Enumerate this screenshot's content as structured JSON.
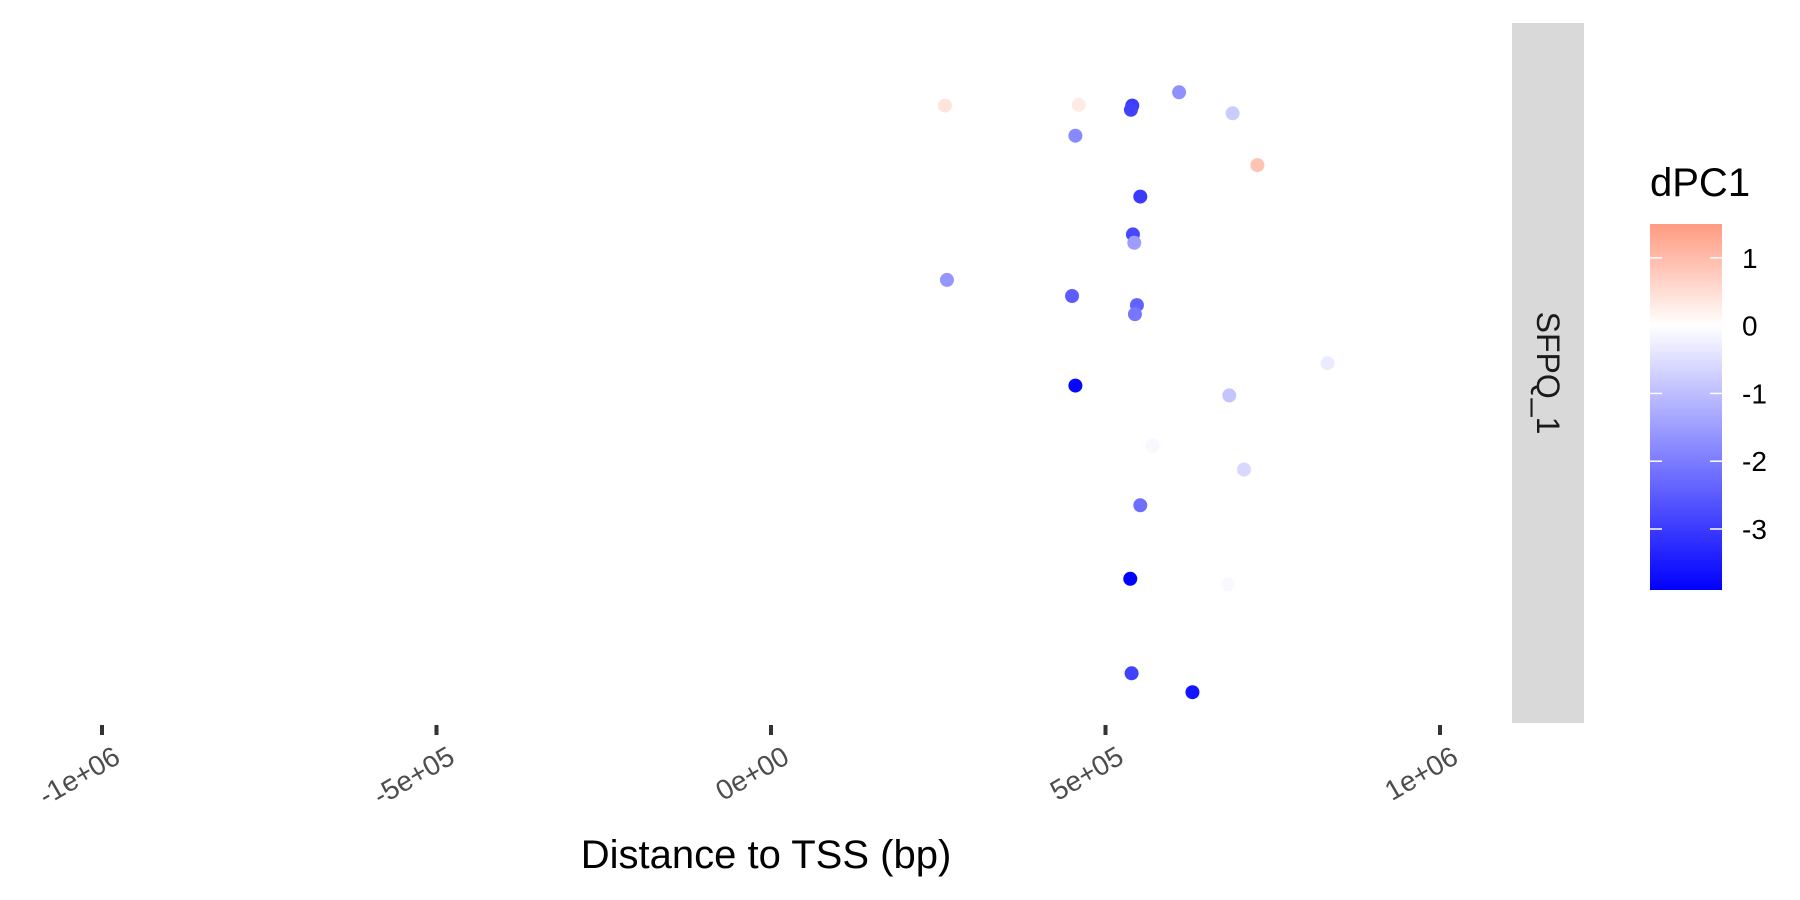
{
  "chart_data": {
    "type": "scatter",
    "xlabel": "Distance to TSS (bp)",
    "ylabel": "",
    "xlim": [
      -1000000,
      1000000
    ],
    "x_ticks": [
      -1000000,
      -500000,
      0,
      500000,
      1000000
    ],
    "x_tick_labels": [
      "-1e+06",
      "-5e+05",
      "0e+00",
      "5e+05",
      "1e+06"
    ],
    "facet_label": "SFPQ_1",
    "grid": false,
    "legend": {
      "title": "dPC1",
      "position": "right",
      "type": "colorbar",
      "range": [
        -3.9,
        1.5
      ],
      "ticks": [
        1,
        0,
        -1,
        -2,
        -3
      ],
      "tick_labels": [
        "1",
        "0",
        "-1",
        "-2",
        "-3"
      ],
      "low_color": "#0000FF",
      "mid_color": "#FFFFFF",
      "high_color": "#FF9A80"
    },
    "points": [
      {
        "x": 260000,
        "y": 0.882,
        "dPC1": 0.4
      },
      {
        "x": 460000,
        "y": 0.883,
        "dPC1": 0.3
      },
      {
        "x": 540000,
        "y": 0.882,
        "dPC1": -3.0
      },
      {
        "x": 538000,
        "y": 0.876,
        "dPC1": -2.9
      },
      {
        "x": 610000,
        "y": 0.901,
        "dPC1": -1.7
      },
      {
        "x": 690000,
        "y": 0.871,
        "dPC1": -0.8
      },
      {
        "x": 455000,
        "y": 0.839,
        "dPC1": -1.8
      },
      {
        "x": 727000,
        "y": 0.797,
        "dPC1": 0.9
      },
      {
        "x": 552000,
        "y": 0.752,
        "dPC1": -3.0
      },
      {
        "x": 541000,
        "y": 0.698,
        "dPC1": -2.8
      },
      {
        "x": 543000,
        "y": 0.686,
        "dPC1": -1.5
      },
      {
        "x": 263000,
        "y": 0.633,
        "dPC1": -1.6
      },
      {
        "x": 450000,
        "y": 0.61,
        "dPC1": -2.5
      },
      {
        "x": 547000,
        "y": 0.597,
        "dPC1": -2.4
      },
      {
        "x": 544000,
        "y": 0.584,
        "dPC1": -2.1
      },
      {
        "x": 832000,
        "y": 0.514,
        "dPC1": -0.3
      },
      {
        "x": 455000,
        "y": 0.482,
        "dPC1": -3.8
      },
      {
        "x": 685000,
        "y": 0.468,
        "dPC1": -0.9
      },
      {
        "x": 570000,
        "y": 0.396,
        "dPC1": -0.1
      },
      {
        "x": 707000,
        "y": 0.362,
        "dPC1": -0.6
      },
      {
        "x": 552000,
        "y": 0.311,
        "dPC1": -2.2
      },
      {
        "x": 537000,
        "y": 0.206,
        "dPC1": -3.9
      },
      {
        "x": 683000,
        "y": 0.198,
        "dPC1": -0.1
      },
      {
        "x": 539000,
        "y": 0.071,
        "dPC1": -2.9
      },
      {
        "x": 630000,
        "y": 0.044,
        "dPC1": -3.6
      }
    ]
  }
}
